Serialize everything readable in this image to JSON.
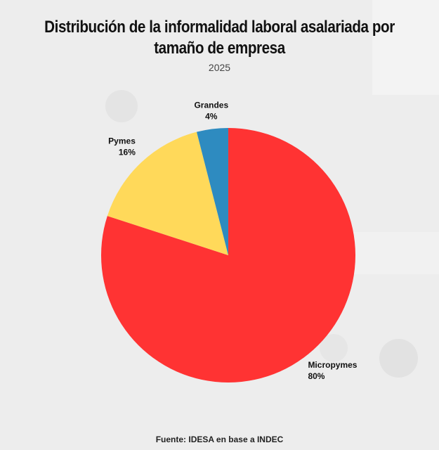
{
  "header": {
    "title": "Distribución de la informalidad laboral asalariada por tamaño de empresa",
    "subtitle": "2025"
  },
  "source": "Fuente: IDESA en base a INDEC",
  "chart_data": {
    "type": "pie",
    "title": "Distribución de la informalidad laboral asalariada por tamaño de empresa",
    "subtitle": "2025",
    "slices": [
      {
        "label": "Micropymes",
        "value": 80,
        "value_label": "80%",
        "color": "#ff3333"
      },
      {
        "label": "Pymes",
        "value": 16,
        "value_label": "16%",
        "color": "#ffd95a"
      },
      {
        "label": "Grandes",
        "value": 4,
        "value_label": "4%",
        "color": "#2e8bc0"
      }
    ],
    "start": "12 o'clock",
    "direction": "clockwise",
    "legend": "none"
  }
}
